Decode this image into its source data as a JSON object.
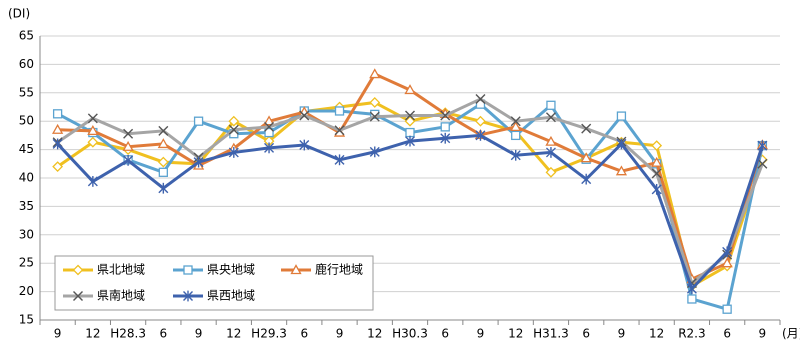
{
  "chart_data": {
    "type": "line",
    "y_label": "(DI)",
    "x_label": "(月)",
    "categories": [
      "9",
      "12",
      "H28.3",
      "6",
      "9",
      "12",
      "H29.3",
      "6",
      "9",
      "12",
      "H30.3",
      "6",
      "9",
      "12",
      "H31.3",
      "6",
      "9",
      "12",
      "R2.3",
      "6",
      "9"
    ],
    "ylim": [
      15,
      65
    ],
    "yticks": [
      15,
      20,
      25,
      30,
      35,
      40,
      45,
      50,
      55,
      60,
      65
    ],
    "grid": true,
    "legend": "lower-left",
    "series": [
      {
        "name": "県北地域",
        "color": "#f0c020",
        "marker": "diamond",
        "values": [
          42,
          46.3,
          45,
          42.8,
          42.5,
          50,
          46.5,
          51.7,
          52.5,
          53.3,
          50,
          51.5,
          50,
          48.2,
          41,
          43.5,
          46.3,
          45.7,
          21,
          24.5,
          43.2
        ]
      },
      {
        "name": "県央地域",
        "color": "#5ba3d0",
        "marker": "square",
        "values": [
          51.3,
          48,
          43.2,
          41,
          50,
          47.8,
          48,
          51.8,
          51.8,
          51.2,
          48,
          49,
          53,
          47.5,
          52.8,
          43.3,
          50.9,
          42.5,
          18.7,
          16.9,
          45.7
        ]
      },
      {
        "name": "鹿行地域",
        "color": "#e07b39",
        "marker": "triangle",
        "values": [
          48.5,
          48.3,
          45.5,
          46,
          42.2,
          45.2,
          50,
          51.6,
          48,
          58.3,
          55.5,
          51.3,
          47.6,
          49,
          46.4,
          43.5,
          41.2,
          42.7,
          22.2,
          25,
          45.8
        ]
      },
      {
        "name": "県南地域",
        "color": "#a5a5a5",
        "marker": "x",
        "values": [
          46.3,
          50.5,
          47.8,
          48.3,
          43.6,
          48.5,
          49,
          51,
          48.4,
          50.8,
          51,
          51,
          53.9,
          50,
          50.7,
          48.7,
          46.4,
          40.8,
          21.5,
          26.5,
          42.5
        ]
      },
      {
        "name": "県西地域",
        "color": "#3e62ad",
        "marker": "asterisk",
        "values": [
          46,
          39.4,
          43.1,
          38.2,
          42.8,
          44.5,
          45.3,
          45.8,
          43.2,
          44.6,
          46.5,
          47,
          47.5,
          44,
          44.5,
          39.8,
          46,
          38,
          20.5,
          27,
          45.7
        ]
      }
    ]
  }
}
